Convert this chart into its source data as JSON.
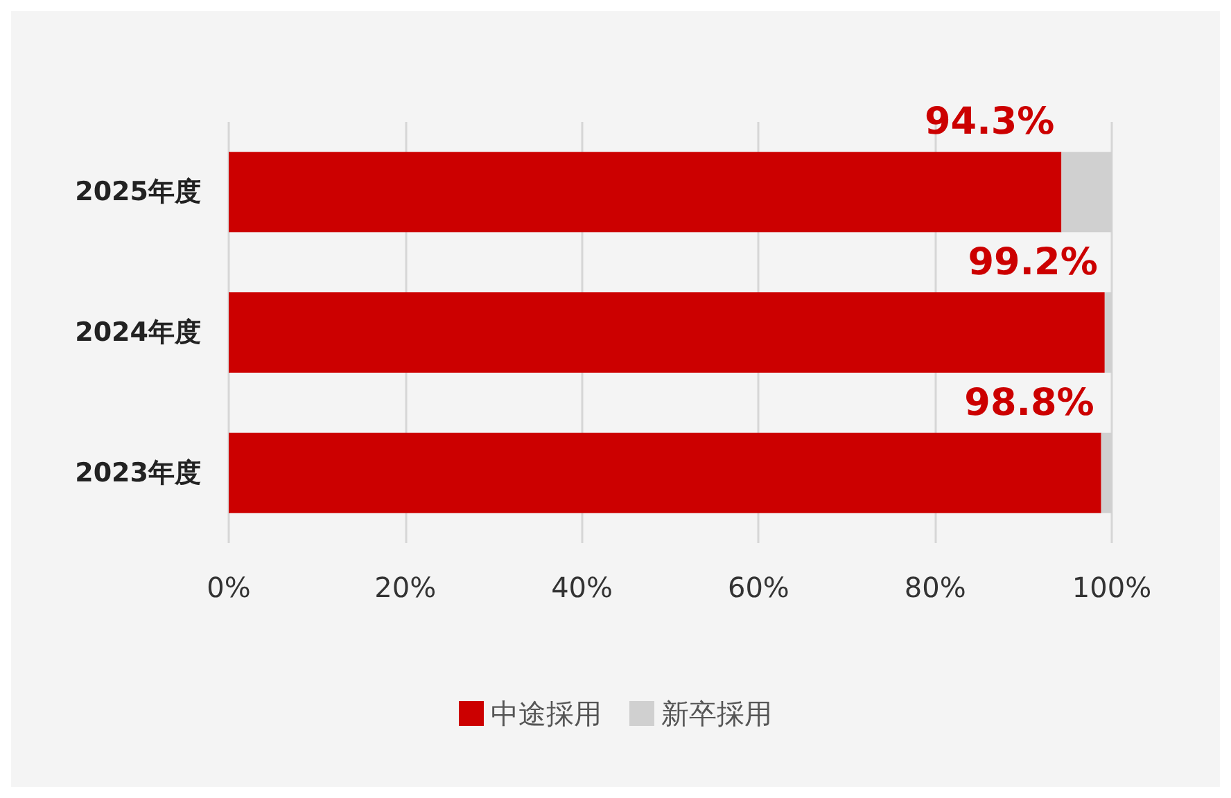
{
  "chart_data": {
    "type": "bar",
    "orientation": "horizontal",
    "stacked": true,
    "categories": [
      "2025年度",
      "2024年度",
      "2023年度"
    ],
    "series": [
      {
        "name": "中途採用",
        "color": "#cc0000",
        "values": [
          94.3,
          99.2,
          98.8
        ],
        "value_labels": [
          "94.3%",
          "99.2%",
          "98.8%"
        ]
      },
      {
        "name": "新卒採用",
        "color": "#d0d0d0",
        "values": [
          5.7,
          0.8,
          1.2
        ]
      }
    ],
    "xlim": [
      0,
      100
    ],
    "xticks": [
      {
        "value": 0,
        "label": "0%"
      },
      {
        "value": 20,
        "label": "20%"
      },
      {
        "value": 40,
        "label": "40%"
      },
      {
        "value": 60,
        "label": "60%"
      },
      {
        "value": 80,
        "label": "80%"
      },
      {
        "value": 100,
        "label": "100%"
      }
    ],
    "grid": "x",
    "legend": "bottom"
  }
}
